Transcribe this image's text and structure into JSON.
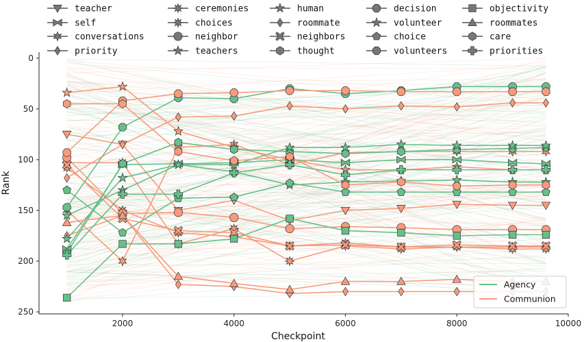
{
  "chart_data": {
    "type": "line",
    "xlabel": "Checkpoint",
    "ylabel": "Rank",
    "xlim": [
      500,
      10000
    ],
    "ylim": [
      252,
      -6
    ],
    "y_inverted": true,
    "xticks": [
      2000,
      4000,
      6000,
      8000,
      10000
    ],
    "yticks": [
      0,
      50,
      100,
      150,
      200,
      250
    ],
    "legend_position": "lower-right",
    "colors": {
      "Agency": "#66bf8a",
      "Communion": "#f79b7c",
      "edge": "#333333"
    },
    "group_legend": [
      {
        "name": "Agency",
        "color": "#66bf8a"
      },
      {
        "name": "Communion",
        "color": "#f79b7c"
      }
    ],
    "checkpoints": [
      1000,
      2000,
      3000,
      4000,
      5000,
      6000,
      7000,
      8000,
      9000,
      9600
    ],
    "series": [
      {
        "name": "teacher",
        "group": "Communion",
        "marker": "triangle-down",
        "values": [
          75,
          85,
          150,
          140,
          160,
          150,
          148,
          144,
          145,
          145
        ]
      },
      {
        "name": "self",
        "group": "Agency",
        "marker": "bowtie",
        "values": [
          188,
          105,
          104,
          103,
          100,
          103,
          100,
          100,
          103,
          104
        ]
      },
      {
        "name": "conversations",
        "group": "Communion",
        "marker": "star6",
        "values": [
          150,
          200,
          88,
          85,
          105,
          93,
          92,
          92,
          92,
          92
        ]
      },
      {
        "name": "priority",
        "group": "Communion",
        "marker": "diamond-thin",
        "values": [
          175,
          155,
          223,
          225,
          232,
          230,
          230,
          230,
          230,
          230
        ]
      },
      {
        "name": "ceremonies",
        "group": "Communion",
        "marker": "star8",
        "values": [
          108,
          150,
          172,
          176,
          185,
          182,
          186,
          186,
          186,
          186
        ]
      },
      {
        "name": "choices",
        "group": "Communion",
        "marker": "star8",
        "values": [
          103,
          103,
          183,
          168,
          200,
          185,
          188,
          186,
          188,
          188
        ]
      },
      {
        "name": "neighbor",
        "group": "Communion",
        "marker": "circle",
        "values": [
          98,
          153,
          152,
          157,
          168,
          166,
          167,
          169,
          169,
          169
        ]
      },
      {
        "name": "teachers",
        "group": "Communion",
        "marker": "star5",
        "values": [
          34,
          28,
          72,
          88,
          100,
          110,
          110,
          107,
          110,
          110
        ]
      },
      {
        "name": "human",
        "group": "Agency",
        "marker": "star5",
        "values": [
          178,
          118,
          105,
          112,
          125,
          122,
          121,
          120,
          122,
          122
        ]
      },
      {
        "name": "roommate",
        "group": "Communion",
        "marker": "diamond-thin",
        "values": [
          118,
          85,
          58,
          57,
          47,
          50,
          47,
          48,
          44,
          44
        ]
      },
      {
        "name": "neighbors",
        "group": "Communion",
        "marker": "x-thick",
        "values": [
          105,
          158,
          170,
          172,
          185,
          184,
          186,
          184,
          185,
          185
        ]
      },
      {
        "name": "thought",
        "group": "Agency",
        "marker": "hexagon",
        "values": [
          192,
          104,
          83,
          90,
          92,
          94,
          92,
          90,
          89,
          88
        ]
      },
      {
        "name": "decision",
        "group": "Agency",
        "marker": "octagon",
        "values": [
          147,
          68,
          39,
          40,
          30,
          35,
          32,
          28,
          28,
          28
        ]
      },
      {
        "name": "volunteer",
        "group": "Agency",
        "marker": "star5",
        "values": [
          155,
          130,
          105,
          105,
          88,
          88,
          85,
          86,
          86,
          86
        ]
      },
      {
        "name": "choice",
        "group": "Agency",
        "marker": "pentagon",
        "values": [
          130,
          172,
          138,
          137,
          123,
          132,
          132,
          132,
          132,
          132
        ]
      },
      {
        "name": "volunteers",
        "group": "Communion",
        "marker": "octagon",
        "values": [
          93,
          42,
          35,
          34,
          32,
          32,
          33,
          33,
          33,
          33
        ]
      },
      {
        "name": "objectivity",
        "group": "Agency",
        "marker": "square",
        "values": [
          236,
          183,
          183,
          178,
          158,
          170,
          172,
          175,
          174,
          174
        ]
      },
      {
        "name": "roommates",
        "group": "Communion",
        "marker": "triangle-up",
        "values": [
          162,
          155,
          215,
          222,
          228,
          220,
          220,
          218,
          220,
          220
        ]
      },
      {
        "name": "care",
        "group": "Communion",
        "marker": "hexagon",
        "values": [
          45,
          45,
          92,
          101,
          97,
          125,
          122,
          126,
          125,
          125
        ]
      },
      {
        "name": "priorities",
        "group": "Agency",
        "marker": "plus",
        "values": [
          194,
          134,
          134,
          113,
          105,
          115,
          110,
          110,
          110,
          110
        ]
      }
    ]
  }
}
